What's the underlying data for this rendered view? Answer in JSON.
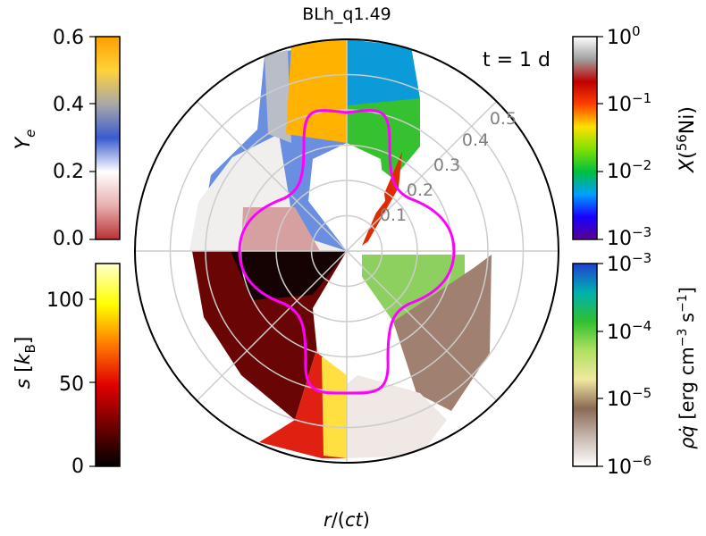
{
  "title": "BLh_q1.49",
  "time_label": "t = 1 d",
  "xlabel": "r/(ct)",
  "radial_ticks": [
    "0.1",
    "0.2",
    "0.3",
    "0.4",
    "0.5"
  ],
  "colorbars": {
    "ye": {
      "label": "Y_e",
      "ticks": [
        "0.6",
        "0.4",
        "0.2",
        "0.0"
      ],
      "range": [
        0,
        0.6
      ],
      "colors": [
        "#b83235",
        "#e8b0b0",
        "#ffffff",
        "#3a5bd0",
        "#a8a8a8",
        "#ffd23a",
        "#ffa000"
      ]
    },
    "s": {
      "label": "s [k_B]",
      "ticks": [
        "100",
        "50",
        "0"
      ],
      "range": [
        0,
        120
      ],
      "colors": [
        "#000000",
        "#700000",
        "#e00000",
        "#ff7a00",
        "#ffff00",
        "#ffffd0"
      ]
    },
    "ni": {
      "label": "X(56Ni)",
      "ticks": [
        "10^0",
        "10^-1",
        "10^-2",
        "10^-3"
      ],
      "range": [
        0.001,
        1
      ],
      "scale": "log",
      "colors": [
        "#5a0090",
        "#1a00ff",
        "#00a0ff",
        "#00c040",
        "#80e000",
        "#ffe000",
        "#ff4000",
        "#c00000",
        "#a0a0a0",
        "#ffffff"
      ]
    },
    "heat": {
      "label": "ρq̇ [erg cm^-3 s^-1]",
      "ticks": [
        "10^-3",
        "10^-4",
        "10^-5",
        "10^-6"
      ],
      "range": [
        1e-06,
        0.001
      ],
      "scale": "log",
      "colors": [
        "#ffffff",
        "#c8b8b0",
        "#8a6a55",
        "#f0e8a0",
        "#b0e060",
        "#30c030",
        "#00b0b0",
        "#2040d0"
      ]
    }
  },
  "chart_data": {
    "type": "polar-quadrant-map",
    "title": "BLh_q1.49",
    "xlabel": "r/(ct)",
    "r_range": [
      0,
      0.6
    ],
    "r_ticks": [
      0.1,
      0.2,
      0.3,
      0.4,
      0.5
    ],
    "grid": true,
    "quadrants": {
      "top_left": "Y_e",
      "top_right": "X(56Ni)",
      "bottom_left": "s [k_B]",
      "bottom_right": "ρq̇ [erg cm^-3 s^-1]"
    },
    "contour_color": "#ff00ff",
    "colors": {
      "axis": "#000000",
      "grid": "#cccccc",
      "tick_label": "#808080"
    }
  }
}
